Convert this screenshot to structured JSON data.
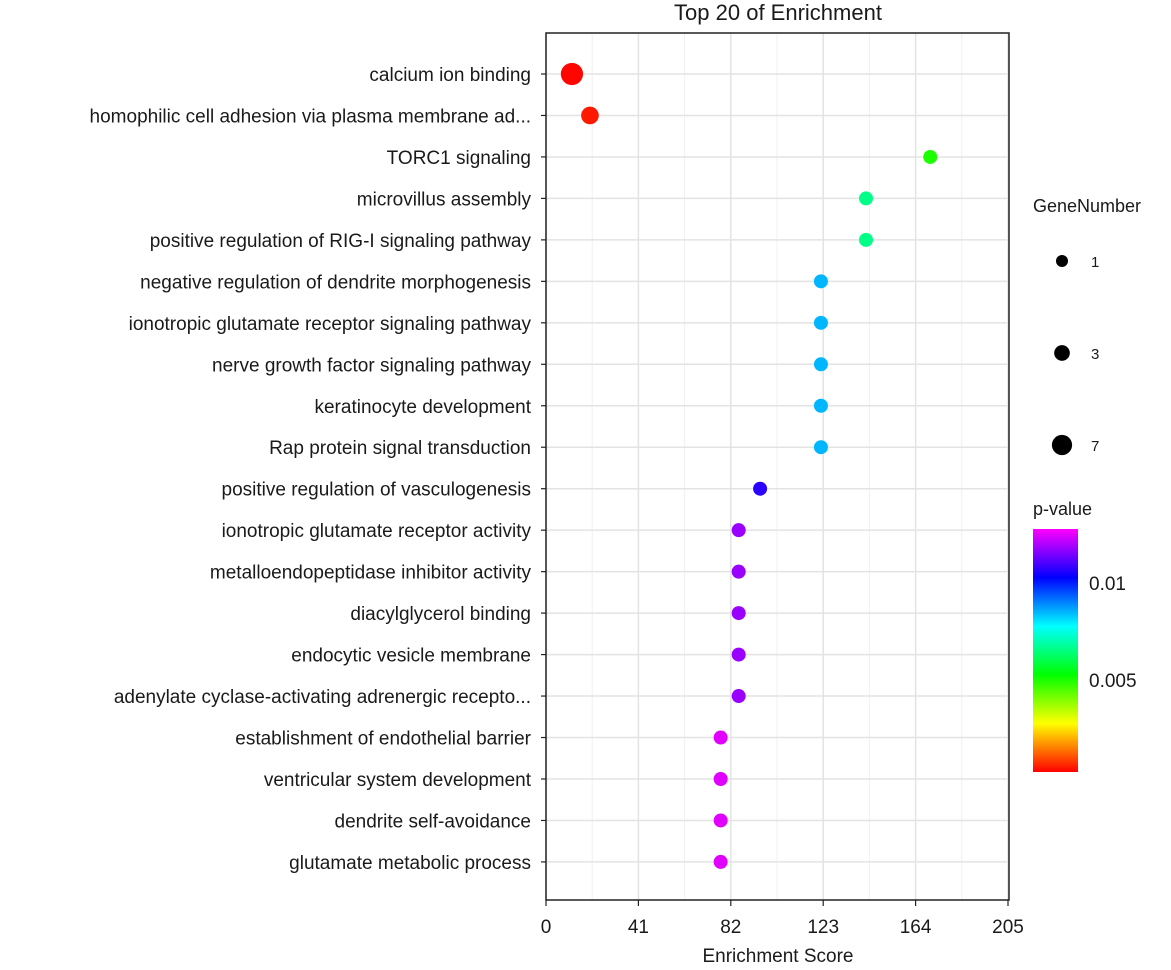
{
  "chart_data": {
    "type": "scatter",
    "title": "Top 20 of  Enrichment",
    "xlabel": "Enrichment Score",
    "ylabel": "",
    "xlim": [
      0,
      205
    ],
    "xticks": [
      0,
      41,
      82,
      123,
      164,
      205
    ],
    "grid": true,
    "categories": [
      "calcium ion binding",
      "homophilic cell adhesion via plasma membrane ad...",
      "TORC1 signaling",
      "microvillus assembly",
      "positive regulation of RIG-I signaling pathway",
      "negative regulation of dendrite morphogenesis",
      "ionotropic glutamate receptor signaling pathway",
      "nerve growth factor signaling pathway",
      "keratinocyte development",
      "Rap protein signal transduction",
      "positive regulation of vasculogenesis",
      "ionotropic glutamate receptor activity",
      "metalloendopeptidase inhibitor activity",
      "diacylglycerol binding",
      "endocytic vesicle membrane",
      "adenylate cyclase-activating adrenergic recepto...",
      "establishment of endothelial barrier",
      "ventricular system development",
      "dendrite self-avoidance",
      "glutamate metabolic process"
    ],
    "enrichment_score": [
      11.5,
      19.5,
      170.5,
      142,
      142,
      122,
      122,
      122,
      122,
      122,
      95,
      85.5,
      85.5,
      85.5,
      85.5,
      85.5,
      77.5,
      77.5,
      77.5,
      77.5
    ],
    "gene_number": [
      7,
      3,
      1,
      1,
      1,
      1,
      1,
      1,
      1,
      1,
      1,
      1,
      1,
      1,
      1,
      1,
      1,
      1,
      1,
      1
    ],
    "p_value": [
      0.0003,
      0.0005,
      0.005,
      0.0066,
      0.0066,
      0.0085,
      0.0085,
      0.0085,
      0.0085,
      0.0085,
      0.0107,
      0.0118,
      0.0118,
      0.0118,
      0.0118,
      0.0118,
      0.0125,
      0.0125,
      0.0125,
      0.0125
    ],
    "size_legend": {
      "title": "GeneNumber",
      "values": [
        1,
        3,
        7
      ],
      "labels": [
        "1",
        "3",
        "7"
      ]
    },
    "color_legend": {
      "title": "p-value",
      "range": [
        0.00025,
        0.0128
      ],
      "tick_values": [
        0.01,
        0.005
      ],
      "tick_labels": [
        "0.01",
        "0.005"
      ],
      "colors": [
        "#ff0000",
        "#ffff00",
        "#00ff00",
        "#00ffff",
        "#0000ff",
        "#ff00ff"
      ]
    }
  }
}
